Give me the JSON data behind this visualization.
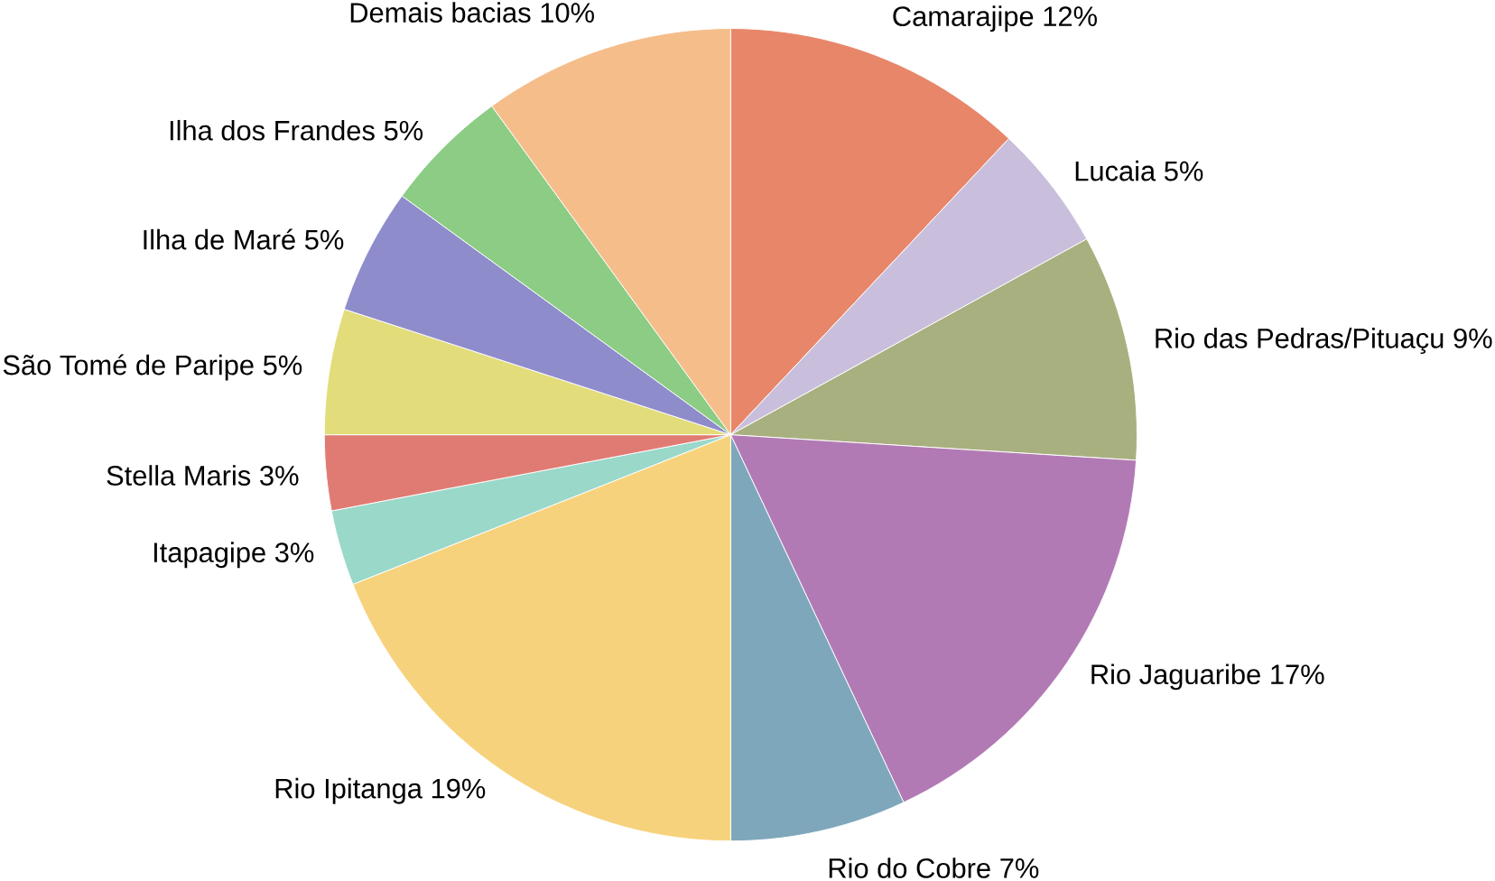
{
  "chart_data": {
    "type": "pie",
    "categories": [
      "Camarajipe",
      "Lucaia",
      "Rio das Pedras/Pituaçu",
      "Rio Jaguaribe",
      "Rio do Cobre",
      "Rio Ipitanga",
      "Itapagipe",
      "Stella Maris",
      "São Tomé de Paripe",
      "Ilha de Maré",
      "Ilha dos Frandes",
      "Demais bacias"
    ],
    "values": [
      12,
      5,
      9,
      17,
      7,
      19,
      3,
      3,
      5,
      5,
      5,
      10
    ],
    "value_labels": [
      "12%",
      "5%",
      "9%",
      "17%",
      "7%",
      "19%",
      "3%",
      "3%",
      "5%",
      "5%",
      "5%",
      "10%"
    ],
    "colors": [
      "#e8866a",
      "#c9bfdc",
      "#a9b07f",
      "#b27ab5",
      "#7fa7bb",
      "#f7d27c",
      "#9ad8c9",
      "#e07b73",
      "#e2dc7a",
      "#8f8ccc",
      "#8ccc84",
      "#f5bd8a"
    ]
  }
}
